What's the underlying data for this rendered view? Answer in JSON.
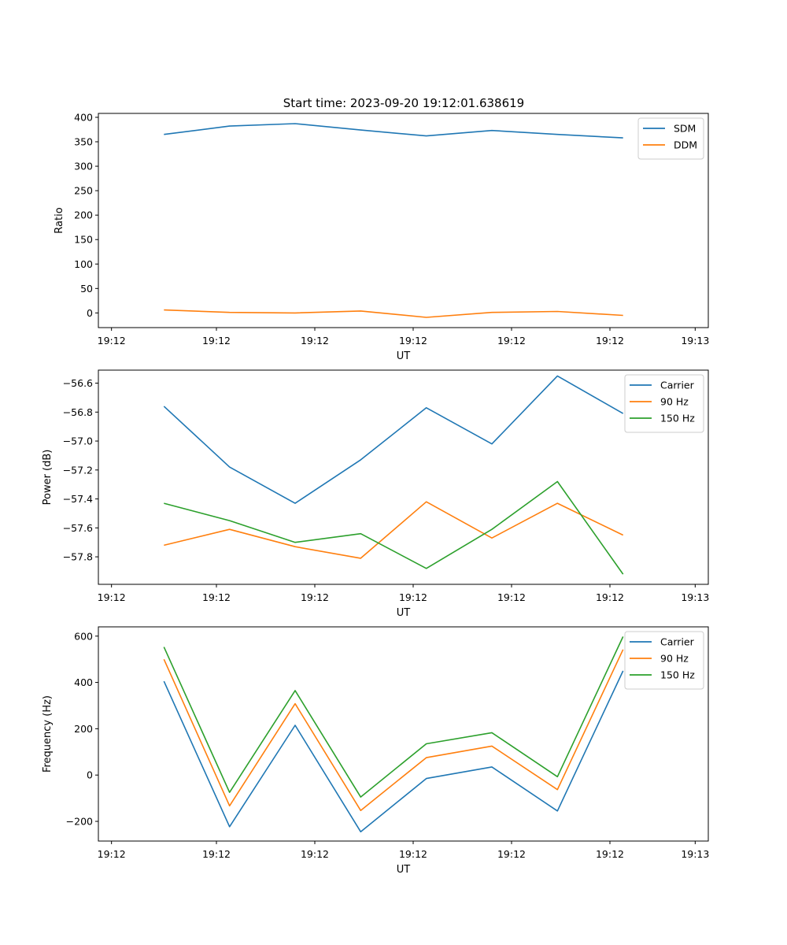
{
  "figure_title": "Start time: 2023-09-20 19:12:01.638619",
  "colors": {
    "blue": "#1f77b4",
    "orange": "#ff7f0e",
    "green": "#2ca02c"
  },
  "chart_data": [
    {
      "type": "line",
      "xlabel": "UT",
      "ylabel": "Ratio",
      "ylim": [
        -30,
        408
      ],
      "xlim": [
        0,
        9.3
      ],
      "x": [
        1,
        2,
        3,
        4,
        5,
        6,
        7,
        8
      ],
      "x_ticks": [
        0.2,
        1.8,
        3.3,
        4.8,
        6.3,
        7.8,
        9.1
      ],
      "x_tick_labels": [
        "19:12",
        "19:12",
        "19:12",
        "19:12",
        "19:12",
        "19:12",
        "19:13"
      ],
      "y_ticks": [
        0,
        50,
        100,
        150,
        200,
        250,
        300,
        350,
        400
      ],
      "y_tick_labels": [
        "0",
        "50",
        "100",
        "150",
        "200",
        "250",
        "300",
        "350",
        "400"
      ],
      "legend_position": "top-right",
      "series": [
        {
          "name": "SDM",
          "color": "#1f77b4",
          "values": [
            365,
            382,
            387,
            374,
            362,
            373,
            365,
            358
          ]
        },
        {
          "name": "DDM",
          "color": "#ff7f0e",
          "values": [
            6,
            1,
            0,
            4,
            -9,
            1,
            3,
            -5
          ]
        }
      ]
    },
    {
      "type": "line",
      "xlabel": "UT",
      "ylabel": "Power (dB)",
      "ylim": [
        -57.99,
        -56.51
      ],
      "xlim": [
        0,
        9.3
      ],
      "x": [
        1,
        2,
        3,
        4,
        5,
        6,
        7,
        8
      ],
      "x_ticks": [
        0.2,
        1.8,
        3.3,
        4.8,
        6.3,
        7.8,
        9.1
      ],
      "x_tick_labels": [
        "19:12",
        "19:12",
        "19:12",
        "19:12",
        "19:12",
        "19:12",
        "19:13"
      ],
      "y_ticks": [
        -57.8,
        -57.6,
        -57.4,
        -57.2,
        -57.0,
        -56.8,
        -56.6
      ],
      "y_tick_labels": [
        "−57.8",
        "−57.6",
        "−57.4",
        "−57.2",
        "−57.0",
        "−56.8",
        "−56.6"
      ],
      "legend_position": "top-right",
      "series": [
        {
          "name": "Carrier",
          "color": "#1f77b4",
          "values": [
            -56.76,
            -57.18,
            -57.43,
            -57.13,
            -56.77,
            -57.02,
            -56.55,
            -56.81
          ]
        },
        {
          "name": "90 Hz",
          "color": "#ff7f0e",
          "values": [
            -57.72,
            -57.61,
            -57.73,
            -57.81,
            -57.42,
            -57.67,
            -57.43,
            -57.65
          ]
        },
        {
          "name": "150 Hz",
          "color": "#2ca02c",
          "values": [
            -57.43,
            -57.55,
            -57.7,
            -57.64,
            -57.88,
            -57.61,
            -57.28,
            -57.92
          ]
        }
      ]
    },
    {
      "type": "line",
      "xlabel": "UT",
      "ylabel": "Frequency (Hz)",
      "ylim": [
        -285,
        640
      ],
      "xlim": [
        0,
        9.3
      ],
      "x": [
        1,
        2,
        3,
        4,
        5,
        6,
        7,
        8
      ],
      "x_ticks": [
        0.2,
        1.8,
        3.3,
        4.8,
        6.3,
        7.8,
        9.1
      ],
      "x_tick_labels": [
        "19:12",
        "19:12",
        "19:12",
        "19:12",
        "19:12",
        "19:12",
        "19:13"
      ],
      "y_ticks": [
        -200,
        0,
        200,
        400,
        600
      ],
      "y_tick_labels": [
        "−200",
        "0",
        "200",
        "400",
        "600"
      ],
      "legend_position": "top-right",
      "series": [
        {
          "name": "Carrier",
          "color": "#1f77b4",
          "values": [
            405,
            -223,
            215,
            -245,
            -15,
            35,
            -155,
            450
          ]
        },
        {
          "name": "90 Hz",
          "color": "#ff7f0e",
          "values": [
            500,
            -133,
            308,
            -153,
            75,
            125,
            -63,
            542
          ]
        },
        {
          "name": "150 Hz",
          "color": "#2ca02c",
          "values": [
            553,
            -75,
            365,
            -95,
            135,
            183,
            -7,
            598
          ]
        }
      ]
    }
  ]
}
